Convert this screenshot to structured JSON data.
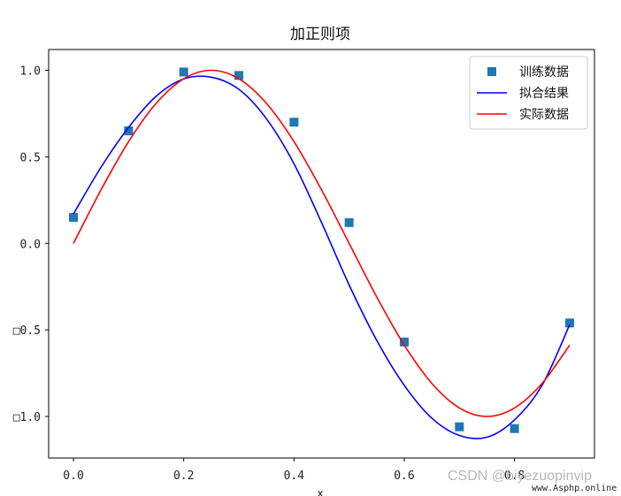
{
  "chart_data": {
    "type": "line",
    "title": "加正则项",
    "xlabel": "x",
    "ylabel": "",
    "xlim": [
      -0.045,
      0.945
    ],
    "ylim": [
      -1.24,
      1.12
    ],
    "x_ticks": [
      0.0,
      0.2,
      0.4,
      0.6,
      0.8
    ],
    "x_tick_labels": [
      "0.0",
      "0.2",
      "0.4",
      "0.6",
      "0.8"
    ],
    "y_ticks": [
      1.0,
      0.5,
      0.0,
      -0.5,
      -1.0
    ],
    "y_tick_labels": [
      "1.0",
      "0.5",
      "0.0",
      "□0.5",
      "□1.0"
    ],
    "legend_position": "upper right",
    "grid": false,
    "series": [
      {
        "name": "训练数据",
        "kind": "scatter",
        "marker": "square",
        "color": "#1f77b4",
        "x": [
          0.0,
          0.1,
          0.2,
          0.3,
          0.4,
          0.5,
          0.6,
          0.7,
          0.8,
          0.9
        ],
        "y": [
          0.15,
          0.65,
          0.99,
          0.97,
          0.7,
          0.12,
          -0.57,
          -1.06,
          -1.07,
          -0.46
        ]
      },
      {
        "name": "拟合结果",
        "kind": "line",
        "color": "#0000ff",
        "x": [
          0.0,
          0.05,
          0.1,
          0.15,
          0.2,
          0.25,
          0.3,
          0.35,
          0.4,
          0.45,
          0.5,
          0.55,
          0.6,
          0.65,
          0.7,
          0.75,
          0.8,
          0.85,
          0.9
        ],
        "y": [
          0.17,
          0.44,
          0.67,
          0.85,
          0.95,
          0.96,
          0.89,
          0.72,
          0.46,
          0.12,
          -0.24,
          -0.56,
          -0.82,
          -1.01,
          -1.11,
          -1.12,
          -1.02,
          -0.82,
          -0.47
        ]
      },
      {
        "name": "实际数据",
        "kind": "line",
        "color": "#ff0000",
        "x": [
          0.0,
          0.05,
          0.1,
          0.15,
          0.2,
          0.25,
          0.3,
          0.35,
          0.4,
          0.45,
          0.5,
          0.55,
          0.6,
          0.65,
          0.7,
          0.75,
          0.8,
          0.85,
          0.9
        ],
        "y": [
          0.0,
          0.309,
          0.588,
          0.809,
          0.951,
          1.0,
          0.951,
          0.809,
          0.588,
          0.309,
          0.0,
          -0.309,
          -0.588,
          -0.809,
          -0.951,
          -1.0,
          -0.951,
          -0.809,
          -0.588
        ]
      }
    ]
  },
  "watermark": "CSDN @biyezuopinvip",
  "site_badge": "www.Asphp.online"
}
